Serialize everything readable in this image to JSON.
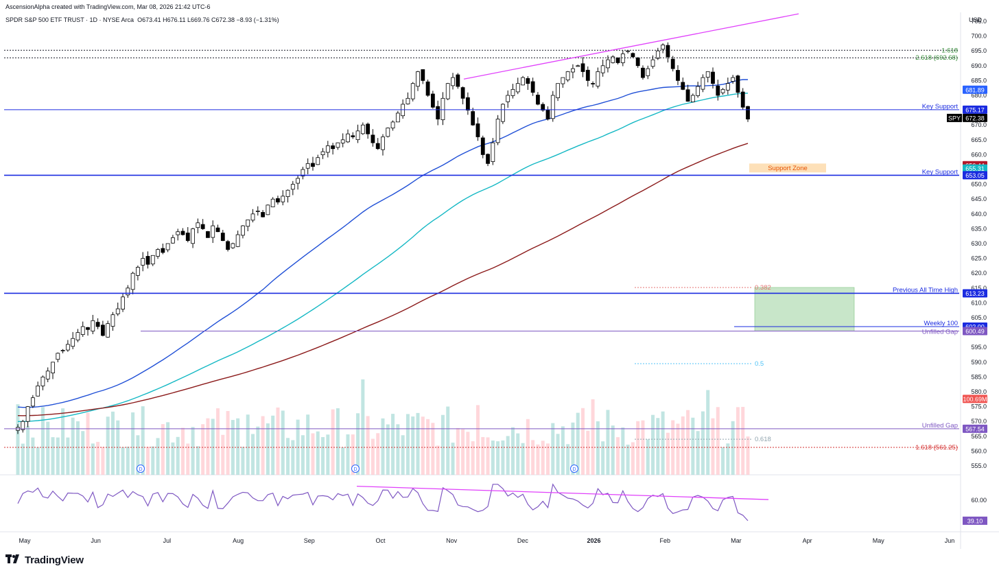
{
  "meta": {
    "credit": "AscensionAlpha created with TradingView.com, Mar 08, 2026 21:42 UTC-6",
    "currency": "USD",
    "brand": "TradingView"
  },
  "header": {
    "symbol": "SPDR S&P 500 ETF TRUST · 1D · NYSE Arca",
    "ohlc": "O673.41  H676.11  L669.76  C672.38  −8.93 (−1.31%)"
  },
  "chart_data": {
    "type": "candlestick",
    "price_axis": {
      "ylim": [
        552,
        708
      ],
      "ticks": [
        555,
        560,
        565,
        570,
        575,
        580,
        585,
        590,
        595,
        600,
        605,
        610,
        615,
        620,
        625,
        630,
        635,
        640,
        645,
        650,
        655,
        660,
        665,
        670,
        675,
        680,
        685,
        690,
        695,
        700,
        705
      ]
    },
    "time_axis": [
      "May",
      "Jun",
      "Jul",
      "Aug",
      "Sep",
      "Oct",
      "Nov",
      "Dec",
      "2026",
      "Feb",
      "Mar",
      "Apr",
      "May",
      "Jun"
    ],
    "price_tags": [
      {
        "label": "681.89",
        "value": 681.89,
        "color": "#2962ff"
      },
      {
        "label": "675.17",
        "value": 675.17,
        "color": "#1a2be0"
      },
      {
        "label": "672.38",
        "value": 672.38,
        "color": "#000000",
        "ticker": "SPY"
      },
      {
        "label": "656.44",
        "value": 656.44,
        "color": "#b2182b"
      },
      {
        "label": "655.31",
        "value": 655.31,
        "color": "#14b8c4"
      },
      {
        "label": "653.05",
        "value": 653.05,
        "color": "#1a2be0"
      },
      {
        "label": "613.23",
        "value": 613.23,
        "color": "#1a2be0"
      },
      {
        "label": "602.00",
        "value": 602.0,
        "color": "#1a2be0"
      },
      {
        "label": "600.49",
        "value": 600.49,
        "color": "#7e57c2"
      },
      {
        "label": "100.69M",
        "value": 577.6,
        "color": "#f05350"
      },
      {
        "label": "567.54",
        "value": 567.54,
        "color": "#7e57c2"
      }
    ],
    "horizontal_lines": [
      {
        "label": "Key Support",
        "value": 675.17,
        "color": "#1a2be0"
      },
      {
        "label": "Key Support",
        "value": 653.05,
        "color": "#1a2be0"
      },
      {
        "label": "Previous All Time High",
        "value": 613.23,
        "color": "#1a2be0"
      },
      {
        "label": "Weekly 100",
        "value": 602.0,
        "color": "#1a2be0"
      },
      {
        "label": "Unfilled Gap",
        "value": 600.49,
        "color": "#7e57c2"
      },
      {
        "label": "Unfilled Gap",
        "value": 567.54,
        "color": "#7e57c2"
      }
    ],
    "fib_levels": [
      {
        "label": "1.618",
        "value": 695.2,
        "color": "#388e3c"
      },
      {
        "label": "2.618 (692.68)",
        "value": 692.68,
        "color": "#388e3c"
      },
      {
        "label": "0.382",
        "value": 615.2,
        "color": "#e57373"
      },
      {
        "label": "0.5",
        "value": 589.5,
        "color": "#4fc3f7"
      },
      {
        "label": "0.618",
        "value": 564.0,
        "color": "#90a4ae"
      },
      {
        "label": "1.618 (561.25)",
        "value": 561.25,
        "color": "#d32f2f"
      }
    ],
    "zone": {
      "label": "Support Zone",
      "low": 654.0,
      "high": 657.0,
      "color": "#fde0b8"
    },
    "target_box": {
      "low": 600.49,
      "high": 615.2,
      "color": "#c8e6c9"
    },
    "rsi": {
      "ticks": [
        60.0
      ],
      "last": "39.10",
      "color": "#7e57c2"
    },
    "dividend_marker": "D",
    "closes_approx": [
      568,
      570,
      575,
      578,
      582,
      585,
      587,
      590,
      593,
      594,
      596,
      598,
      600,
      602,
      601,
      604,
      602,
      599,
      603,
      606,
      608,
      612,
      615,
      620,
      622,
      625,
      623,
      626,
      628,
      627,
      630,
      632,
      634,
      633,
      631,
      635,
      637,
      635,
      632,
      636,
      634,
      631,
      628,
      630,
      633,
      636,
      638,
      640,
      641,
      639,
      643,
      645,
      644,
      646,
      648,
      650,
      652,
      655,
      657,
      656,
      659,
      661,
      663,
      662,
      664,
      665,
      667,
      666,
      668,
      670,
      667,
      664,
      662,
      666,
      669,
      671,
      674,
      677,
      679,
      684,
      688,
      685,
      680,
      676,
      672,
      679,
      684,
      686,
      683,
      679,
      675,
      670,
      666,
      660,
      657,
      664,
      672,
      677,
      680,
      682,
      684,
      686,
      684,
      681,
      677,
      675,
      672,
      680,
      684,
      686,
      688,
      689,
      690,
      688,
      685,
      684,
      688,
      690,
      692,
      693,
      691,
      694,
      695,
      693,
      690,
      686,
      689,
      692,
      695,
      697,
      693,
      689,
      685,
      682,
      678,
      680,
      683,
      686,
      688,
      684,
      680,
      682,
      684,
      686,
      681,
      676,
      672
    ]
  }
}
